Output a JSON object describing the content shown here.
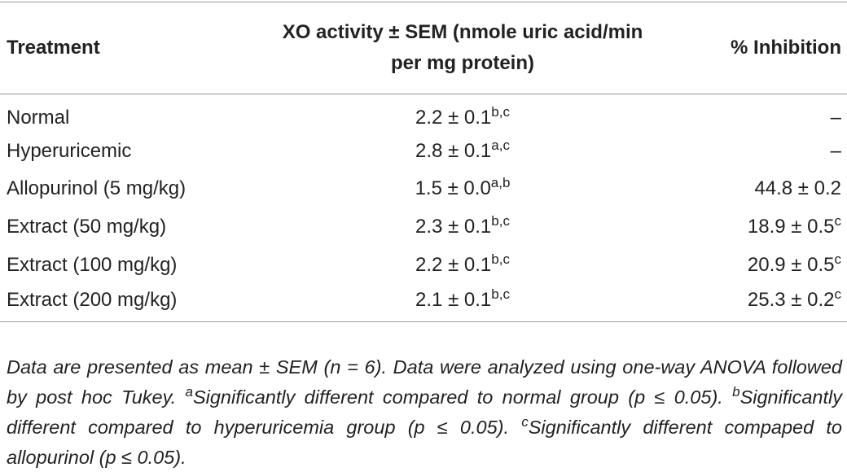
{
  "table": {
    "headers": [
      "Treatment",
      "XO activity ± SEM (nmole uric acid/min per mg protein)",
      "% Inhibition"
    ],
    "rows": [
      [
        {
          "text": "Normal"
        },
        {
          "text": "2.2 ± 0.1",
          "sup": "b,c"
        },
        {
          "text": "–"
        }
      ],
      [
        {
          "text": "Hyperuricemic"
        },
        {
          "text": "2.8 ± 0.1",
          "sup": "a,c"
        },
        {
          "text": "–"
        }
      ],
      [
        {
          "text": "Allopurinol (5 mg/kg)"
        },
        {
          "text": "1.5 ± 0.0",
          "sup": "a,b"
        },
        {
          "text": "44.8 ± 0.2"
        }
      ],
      [
        {
          "text": "Extract (50 mg/kg)"
        },
        {
          "text": "2.3 ± 0.1",
          "sup": "b,c"
        },
        {
          "text": "18.9 ± 0.5",
          "sup": "c"
        }
      ],
      [
        {
          "text": "Extract (100 mg/kg)"
        },
        {
          "text": "2.2 ± 0.1",
          "sup": "b,c"
        },
        {
          "text": "20.9 ± 0.5",
          "sup": "c"
        }
      ],
      [
        {
          "text": "Extract (200 mg/kg)"
        },
        {
          "text": "2.1 ± 0.1",
          "sup": "b,c"
        },
        {
          "text": "25.3 ± 0.2",
          "sup": "c"
        }
      ]
    ]
  },
  "footnote": {
    "intro": "Data are presented as mean ± SEM (n = 6). Data were analyzed using one-way ANOVA followed by post hoc Tukey.",
    "notes": [
      {
        "mark": "a",
        "text": "Significantly different compared to normal group (p ≤ 0.05)."
      },
      {
        "mark": "b",
        "text": "Significantly different compared to hyperuricemia group (p ≤ 0.05)."
      },
      {
        "mark": "c",
        "text": "Significantly different compaped to allopurinol (p ≤ 0.05)."
      }
    ]
  }
}
